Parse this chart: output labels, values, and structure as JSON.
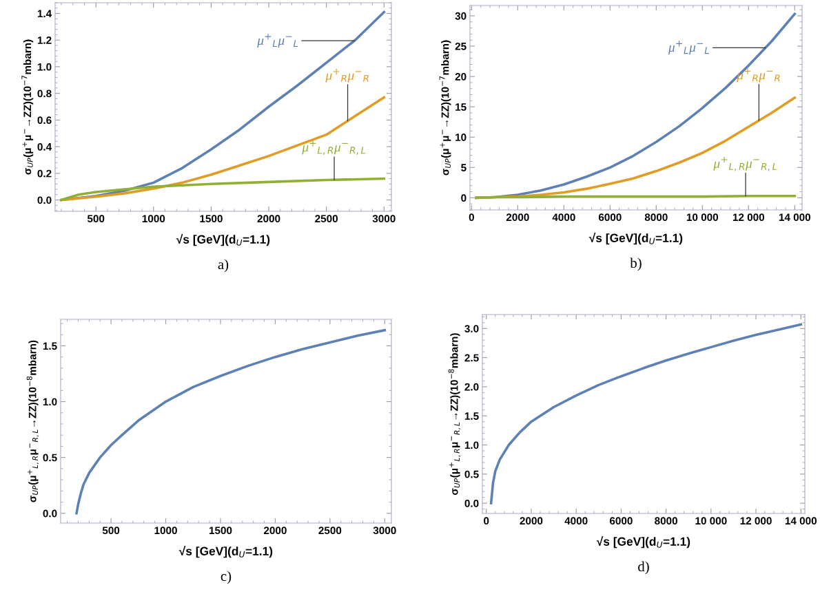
{
  "chart_data": [
    {
      "type": "line",
      "title": "a)",
      "xlabel": "√s [GeV](d$_{U}$=1.1)",
      "ylabel": "σ$_{UP}$(μ$^{+}$μ$^{−}$→ZZ)(10$^{−7}$mbarn)",
      "xlim": [
        146,
        3064
      ],
      "ylim": [
        -0.085,
        1.48
      ],
      "xticks": [
        500,
        1000,
        1500,
        2000,
        2500,
        3000
      ],
      "yticks": [
        {
          "value": 0,
          "label": "0.0"
        },
        0.2,
        0.4,
        0.6,
        0.8,
        {
          "value": 1,
          "label": "1.0"
        },
        1.2,
        1.4
      ],
      "grid": false,
      "legend": false,
      "series": [
        {
          "name": "μ$^{+}$$_{L}$μ$^{−}$$_{L}$",
          "color": "#5e81b5",
          "x": [
            200,
            500,
            750,
            1000,
            1250,
            1500,
            1750,
            2000,
            2250,
            2500,
            2750,
            3000
          ],
          "values": [
            0.0,
            0.03,
            0.07,
            0.13,
            0.24,
            0.38,
            0.53,
            0.7,
            0.86,
            1.03,
            1.2,
            1.41
          ]
        },
        {
          "name": "μ$^{+}$$_{R}$μ$^{−}$$_{R}$",
          "color": "#e19c24",
          "x": [
            200,
            500,
            750,
            1000,
            1250,
            1500,
            1750,
            2000,
            2250,
            2500,
            2750,
            3000
          ],
          "values": [
            0.0,
            0.025,
            0.05,
            0.085,
            0.13,
            0.19,
            0.26,
            0.33,
            0.41,
            0.49,
            0.63,
            0.77
          ]
        },
        {
          "name": "μ$^{+}$$_{L,R}$μ$^{−}$$_{R,L}$",
          "color": "#8fb032",
          "x": [
            200,
            350,
            500,
            750,
            1000,
            1500,
            2000,
            2500,
            3000
          ],
          "values": [
            0.0,
            0.04,
            0.06,
            0.08,
            0.1,
            0.12,
            0.135,
            0.15,
            0.16
          ]
        }
      ]
    },
    {
      "type": "line",
      "title": "b)",
      "xlabel": "√s [GeV](d$_{U}$=1.1)",
      "ylabel": "σ$_{UP}$(μ$^{+}$μ$^{−}$→ZZ)(10$^{−7}$mbarn)",
      "xlim": [
        -70,
        14320
      ],
      "ylim": [
        -2,
        31.7
      ],
      "xticks": [
        0,
        2000,
        4000,
        6000,
        8000,
        {
          "value": 10000,
          "label": "10 000"
        },
        {
          "value": 12000,
          "label": "12 000"
        },
        {
          "value": 14000,
          "label": "14 000"
        }
      ],
      "yticks": [
        0,
        5,
        10,
        15,
        20,
        25,
        30
      ],
      "grid": false,
      "legend": false,
      "series": [
        {
          "name": "μ$^{+}$$_{L}$μ$^{−}$$_{L}$",
          "color": "#5e81b5",
          "x": [
            200,
            1000,
            2000,
            3000,
            4000,
            5000,
            6000,
            7000,
            8000,
            9000,
            10000,
            11000,
            12000,
            13000,
            14000
          ],
          "values": [
            0,
            0.1,
            0.5,
            1.2,
            2.2,
            3.5,
            5.0,
            6.9,
            9.2,
            11.8,
            14.8,
            18.1,
            21.8,
            25.8,
            30.3
          ]
        },
        {
          "name": "μ$^{+}$$_{R}$μ$^{−}$$_{R}$",
          "color": "#e19c24",
          "x": [
            200,
            1000,
            2000,
            3000,
            4000,
            5000,
            6000,
            7000,
            8000,
            9000,
            10000,
            11000,
            12000,
            13000,
            14000
          ],
          "values": [
            0,
            0.1,
            0.2,
            0.5,
            0.9,
            1.5,
            2.3,
            3.2,
            4.4,
            5.8,
            7.4,
            9.4,
            11.7,
            14.0,
            16.5
          ]
        },
        {
          "name": "μ$^{+}$$_{L,R}$μ$^{−}$$_{R,L}$",
          "color": "#8fb032",
          "x": [
            200,
            1000,
            2000,
            4000,
            6000,
            8000,
            10000,
            12000,
            14000
          ],
          "values": [
            0,
            0.1,
            0.1,
            0.2,
            0.2,
            0.2,
            0.2,
            0.3,
            0.3
          ]
        }
      ]
    },
    {
      "type": "line",
      "title": "c)",
      "xlabel": "√s [GeV](d$_{U}$=1.1)",
      "ylabel": "σ$_{UP}$(μ$^{+}$$_{L,R}$μ$^{−}$$_{R,L}$→ZZ)(10$^{−8}$mbarn)",
      "xlim": [
        40,
        3061
      ],
      "ylim": [
        -0.088,
        1.737
      ],
      "xticks": [
        500,
        1000,
        1500,
        2000,
        2500,
        3000
      ],
      "yticks": [
        {
          "value": 0,
          "label": "0.0"
        },
        0.5,
        {
          "value": 1,
          "label": "1.0"
        },
        1.5
      ],
      "grid": false,
      "legend": false,
      "series": [
        {
          "color": "#5e81b5",
          "x": [
            185,
            200,
            225,
            250,
            300,
            400,
            500,
            600,
            750,
            1000,
            1250,
            1500,
            1750,
            2000,
            2250,
            2500,
            2750,
            3000
          ],
          "values": [
            0,
            0.08,
            0.18,
            0.26,
            0.36,
            0.5,
            0.61,
            0.7,
            0.83,
            1.0,
            1.13,
            1.23,
            1.32,
            1.4,
            1.47,
            1.53,
            1.59,
            1.64
          ]
        }
      ]
    },
    {
      "type": "line",
      "title": "d)",
      "xlabel": "√s [GeV](d$_{U}$=1.1)",
      "ylabel": "σ$_{UP}$(μ$^{+}$$_{L,R}$μ$^{−}$$_{R,L}$→ZZ)(10$^{−8}$mbarn)",
      "xlim": [
        -176,
        14176
      ],
      "ylim": [
        -0.176,
        3.24
      ],
      "xticks": [
        0,
        2000,
        4000,
        6000,
        8000,
        {
          "value": 10000,
          "label": "10 000"
        },
        {
          "value": 12000,
          "label": "12 000"
        },
        {
          "value": 14000,
          "label": "14 000"
        }
      ],
      "yticks": [
        {
          "value": 0,
          "label": "0.0"
        },
        0.5,
        {
          "value": 1,
          "label": "1.0"
        },
        1.5,
        {
          "value": 2,
          "label": "2.0"
        },
        2.5,
        {
          "value": 3,
          "label": "3.0"
        }
      ],
      "grid": false,
      "legend": false,
      "series": [
        {
          "color": "#5e81b5",
          "x": [
            212,
            300,
            400,
            600,
            1000,
            1500,
            2000,
            3000,
            4000,
            5000,
            6000,
            7000,
            8000,
            9000,
            10000,
            11000,
            12000,
            13000,
            14000
          ],
          "values": [
            0,
            0.35,
            0.55,
            0.75,
            1.0,
            1.22,
            1.4,
            1.65,
            1.85,
            2.03,
            2.18,
            2.32,
            2.45,
            2.57,
            2.68,
            2.79,
            2.89,
            2.98,
            3.07
          ]
        }
      ]
    }
  ]
}
